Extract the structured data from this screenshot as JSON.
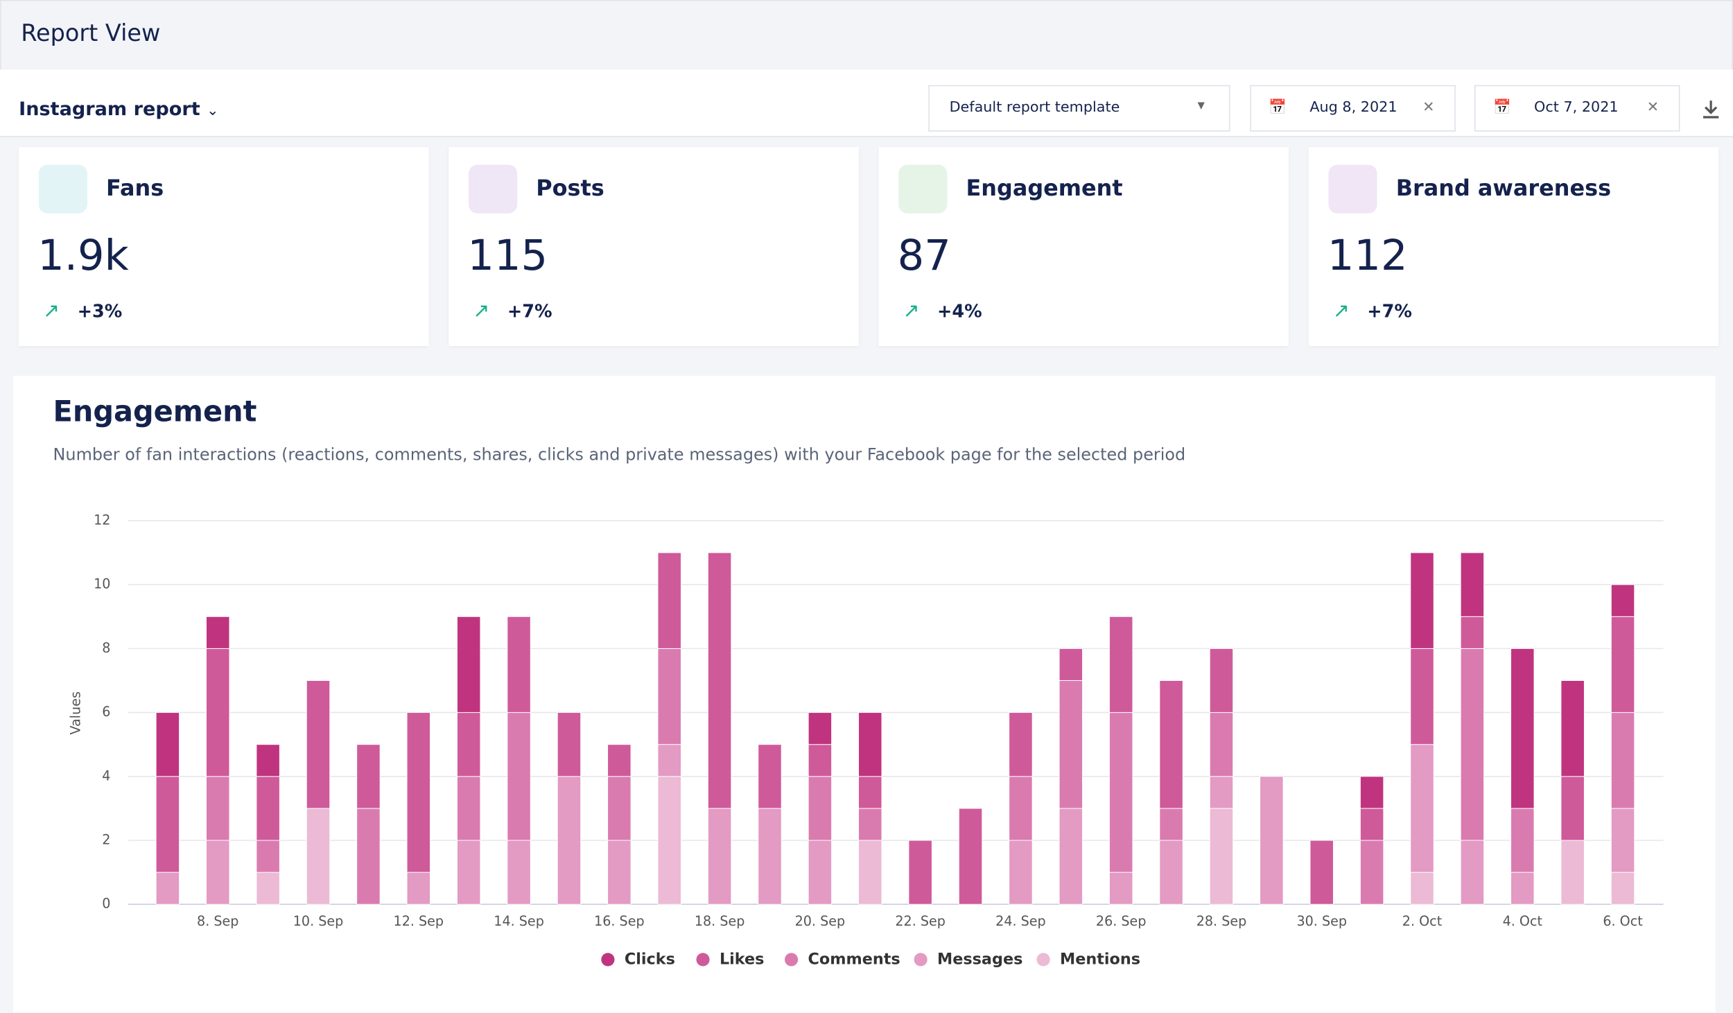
{
  "header": {
    "title": "Report View"
  },
  "toolbar": {
    "report": "Instagram report",
    "template": "Default report template",
    "start_date": "Aug 8, 2021",
    "end_date": "Oct 7, 2021"
  },
  "cards": [
    {
      "title": "Fans",
      "value": "1.9k",
      "change": "+3%"
    },
    {
      "title": "Posts",
      "value": "115",
      "change": "+7%"
    },
    {
      "title": "Engagement",
      "value": "87",
      "change": "+4%"
    },
    {
      "title": "Brand awareness",
      "value": "112",
      "change": "+7%"
    }
  ],
  "chart_data": {
    "type": "stacked-bar",
    "title": "Engagement",
    "subtitle": "Number of fan interactions (reactions, comments, shares, clicks and private messages) with your Facebook page for the selected period",
    "y_label": "Values",
    "categories": [
      null,
      "8. Sep",
      null,
      "10. Sep",
      null,
      "12. Sep",
      null,
      "14. Sep",
      null,
      "16. Sep",
      null,
      "18. Sep",
      null,
      "20. Sep",
      null,
      "22. Sep",
      null,
      "24. Sep",
      null,
      "26. Sep",
      null,
      "28. Sep",
      null,
      "30. Sep",
      null,
      "2. Oct",
      null,
      "4. Oct",
      null,
      "6. Oct"
    ],
    "ylim": [
      0,
      12
    ],
    "yticks": [
      0,
      2,
      4,
      6,
      8,
      10,
      12
    ],
    "grid": true,
    "series": [
      {
        "name": "Mentions",
        "color": "#ecbad5",
        "values": [
          0,
          0,
          1,
          3,
          0,
          0,
          0,
          0,
          0,
          0,
          4,
          0,
          0,
          0,
          2,
          0,
          0,
          0,
          0,
          0,
          0,
          3,
          0,
          0,
          0,
          1,
          0,
          0,
          2,
          1
        ]
      },
      {
        "name": "Messages",
        "color": "#e39ac3",
        "values": [
          1,
          2,
          0,
          0,
          0,
          1,
          2,
          2,
          4,
          2,
          1,
          3,
          3,
          2,
          0,
          0,
          0,
          2,
          3,
          1,
          2,
          1,
          4,
          0,
          0,
          4,
          2,
          1,
          0,
          2
        ]
      },
      {
        "name": "Comments",
        "color": "#da7bb0",
        "values": [
          0,
          2,
          1,
          0,
          3,
          0,
          2,
          4,
          0,
          2,
          3,
          0,
          0,
          2,
          1,
          0,
          0,
          2,
          4,
          5,
          1,
          2,
          0,
          0,
          2,
          0,
          6,
          2,
          0,
          3
        ]
      },
      {
        "name": "Likes",
        "color": "#cf5a9a",
        "values": [
          3,
          4,
          2,
          4,
          2,
          5,
          2,
          3,
          2,
          1,
          3,
          8,
          2,
          1,
          1,
          2,
          3,
          2,
          1,
          3,
          4,
          2,
          0,
          2,
          1,
          3,
          1,
          0,
          2,
          3
        ]
      },
      {
        "name": "Clicks",
        "color": "#c0347f",
        "values": [
          2,
          1,
          1,
          0,
          0,
          0,
          3,
          0,
          0,
          0,
          0,
          0,
          0,
          1,
          2,
          0,
          0,
          0,
          0,
          0,
          0,
          0,
          0,
          0,
          1,
          3,
          2,
          5,
          3,
          1
        ]
      }
    ]
  }
}
